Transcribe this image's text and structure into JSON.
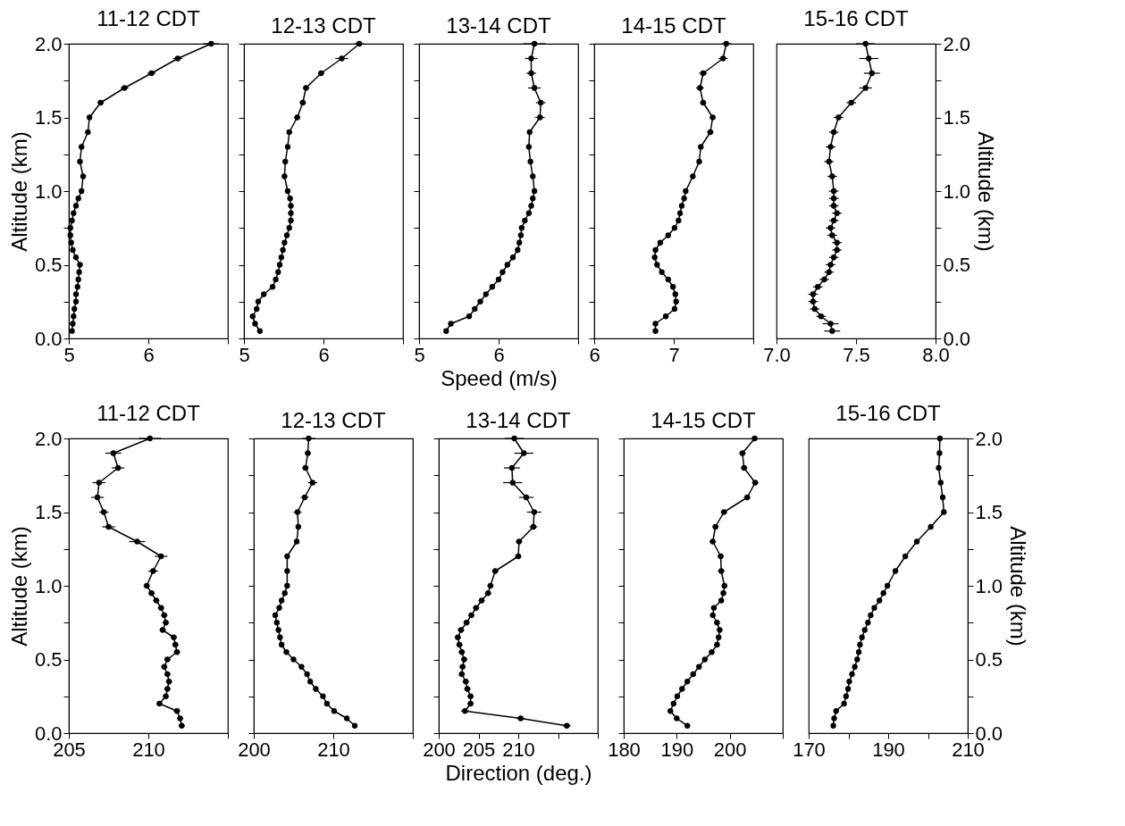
{
  "chart_data": [
    {
      "type": "line",
      "title": "11-12 CDT",
      "ylabel": "Altitude (km)",
      "color": "#000000",
      "marker": "circle",
      "x": [
        5.04,
        5.05,
        5.06,
        5.07,
        5.09,
        5.09,
        5.11,
        5.12,
        5.13,
        5.14,
        5.09,
        5.05,
        5.03,
        5.02,
        5.02,
        5.04,
        5.06,
        5.09,
        5.12,
        5.16,
        5.18,
        5.14,
        5.16,
        5.24,
        5.26,
        5.4,
        5.7,
        6.04,
        6.37,
        6.79
      ],
      "values": [
        0.05,
        0.1,
        0.15,
        0.2,
        0.25,
        0.3,
        0.35,
        0.4,
        0.45,
        0.5,
        0.55,
        0.6,
        0.65,
        0.7,
        0.75,
        0.8,
        0.85,
        0.9,
        0.95,
        1.0,
        1.1,
        1.2,
        1.3,
        1.4,
        1.5,
        1.6,
        1.7,
        1.8,
        1.9,
        2.0
      ],
      "xerrors": [
        0.02,
        0.02,
        0.02,
        0.02,
        0.02,
        0.02,
        0.02,
        0.02,
        0.02,
        0.02,
        0.02,
        0.02,
        0.02,
        0.02,
        0.02,
        0.02,
        0.02,
        0.02,
        0.02,
        0.02,
        0.03,
        0.03,
        0.03,
        0.03,
        0.03,
        0.04,
        0.05,
        0.05,
        0.06,
        0.1
      ],
      "xlim": [
        5,
        7
      ],
      "xticks": [
        5,
        6,
        {
          "value": 7,
          "label": null
        }
      ],
      "ylim": [
        0,
        2
      ],
      "yticks": [
        {
          "value": 0,
          "label": "0.0"
        },
        {
          "value": 0.25,
          "label": null
        },
        {
          "value": 0.5,
          "label": "0.5"
        },
        {
          "value": 0.75,
          "label": null
        },
        {
          "value": 1,
          "label": "1.0"
        },
        {
          "value": 1.25,
          "label": null
        },
        {
          "value": 1.5,
          "label": "1.5"
        },
        {
          "value": 1.75,
          "label": null
        },
        {
          "value": 2,
          "label": "2.0"
        }
      ]
    },
    {
      "type": "line",
      "title": "12-13 CDT",
      "color": "#000000",
      "marker": "circle",
      "tick_labels": "x",
      "x": [
        5.2,
        5.14,
        5.11,
        5.16,
        5.18,
        5.25,
        5.36,
        5.4,
        5.43,
        5.45,
        5.47,
        5.49,
        5.51,
        5.54,
        5.57,
        5.59,
        5.59,
        5.59,
        5.58,
        5.55,
        5.51,
        5.52,
        5.55,
        5.57,
        5.67,
        5.74,
        5.78,
        5.97,
        6.23,
        6.45
      ],
      "values": [
        0.05,
        0.1,
        0.15,
        0.2,
        0.25,
        0.3,
        0.35,
        0.4,
        0.45,
        0.5,
        0.55,
        0.6,
        0.65,
        0.7,
        0.75,
        0.8,
        0.85,
        0.9,
        0.95,
        1.0,
        1.1,
        1.2,
        1.3,
        1.4,
        1.5,
        1.6,
        1.7,
        1.8,
        1.9,
        2.0
      ],
      "xerrors": [
        0.02,
        0.02,
        0.02,
        0.02,
        0.02,
        0.02,
        0.02,
        0.02,
        0.02,
        0.02,
        0.02,
        0.02,
        0.02,
        0.02,
        0.02,
        0.02,
        0.02,
        0.02,
        0.02,
        0.02,
        0.02,
        0.02,
        0.02,
        0.03,
        0.04,
        0.04,
        0.04,
        0.04,
        0.08,
        0.06
      ],
      "xlim": [
        5,
        7
      ],
      "xticks": [
        5,
        6,
        {
          "value": 7,
          "label": null
        }
      ],
      "ylim": [
        0,
        2
      ],
      "yticks": [
        0,
        0.25,
        0.5,
        0.75,
        1,
        1.25,
        1.5,
        1.75,
        2
      ]
    },
    {
      "type": "line",
      "title": "13-14 CDT",
      "xlabel": "Speed (m/s)",
      "color": "#000000",
      "marker": "circle",
      "tick_labels": "x",
      "x": [
        5.34,
        5.4,
        5.63,
        5.7,
        5.77,
        5.84,
        5.92,
        6.0,
        6.05,
        6.11,
        6.18,
        6.24,
        6.26,
        6.28,
        6.29,
        6.33,
        6.38,
        6.41,
        6.43,
        6.45,
        6.43,
        6.4,
        6.38,
        6.39,
        6.52,
        6.53,
        6.45,
        6.41,
        6.41,
        6.45
      ],
      "values": [
        0.05,
        0.1,
        0.15,
        0.2,
        0.25,
        0.3,
        0.35,
        0.4,
        0.45,
        0.5,
        0.55,
        0.6,
        0.65,
        0.7,
        0.75,
        0.8,
        0.85,
        0.9,
        0.95,
        1.0,
        1.1,
        1.2,
        1.3,
        1.4,
        1.5,
        1.6,
        1.7,
        1.8,
        1.9,
        2.0
      ],
      "xerrors": [
        0.03,
        0.03,
        0.03,
        0.03,
        0.03,
        0.03,
        0.03,
        0.03,
        0.03,
        0.03,
        0.03,
        0.03,
        0.03,
        0.03,
        0.03,
        0.03,
        0.03,
        0.03,
        0.03,
        0.03,
        0.03,
        0.03,
        0.03,
        0.03,
        0.06,
        0.06,
        0.08,
        0.06,
        0.08,
        0.14
      ],
      "xlim": [
        5,
        7
      ],
      "xticks": [
        5,
        6,
        {
          "value": 7,
          "label": null
        }
      ],
      "ylim": [
        0,
        2
      ],
      "yticks": [
        0,
        0.25,
        0.5,
        0.75,
        1,
        1.25,
        1.5,
        1.75,
        2
      ]
    },
    {
      "type": "line",
      "title": "14-15 CDT",
      "color": "#000000",
      "marker": "circle",
      "tick_labels": "x",
      "x": [
        6.77,
        6.77,
        6.9,
        7.01,
        7.03,
        7.02,
        6.99,
        6.93,
        6.85,
        6.79,
        6.76,
        6.77,
        6.83,
        6.93,
        7.01,
        7.06,
        7.08,
        7.1,
        7.13,
        7.15,
        7.24,
        7.32,
        7.34,
        7.46,
        7.49,
        7.37,
        7.33,
        7.37,
        7.62,
        7.66
      ],
      "values": [
        0.05,
        0.1,
        0.15,
        0.2,
        0.25,
        0.3,
        0.35,
        0.4,
        0.45,
        0.5,
        0.55,
        0.6,
        0.65,
        0.7,
        0.75,
        0.8,
        0.85,
        0.9,
        0.95,
        1.0,
        1.1,
        1.2,
        1.3,
        1.4,
        1.5,
        1.6,
        1.7,
        1.8,
        1.9,
        2.0
      ],
      "xerrors": [
        0.03,
        0.03,
        0.03,
        0.03,
        0.03,
        0.03,
        0.03,
        0.03,
        0.03,
        0.03,
        0.03,
        0.03,
        0.03,
        0.03,
        0.03,
        0.03,
        0.03,
        0.03,
        0.03,
        0.03,
        0.03,
        0.03,
        0.03,
        0.04,
        0.04,
        0.04,
        0.05,
        0.05,
        0.06,
        0.06
      ],
      "xlim": [
        6,
        8
      ],
      "xticks": [
        6,
        7,
        {
          "value": 8,
          "label": null
        }
      ],
      "ylim": [
        0,
        2
      ],
      "yticks": [
        0,
        0.25,
        0.5,
        0.75,
        1,
        1.25,
        1.5,
        1.75,
        2
      ]
    },
    {
      "type": "line",
      "title": "15-16 CDT",
      "y2label": "Altitude (km)",
      "marker": "circle",
      "tick_labels": "x",
      "series": [
        {
          "color": "#000000",
          "axis": "y2",
          "x": [
            7.35,
            7.34,
            7.28,
            7.24,
            7.23,
            7.23,
            7.26,
            7.3,
            7.33,
            7.34,
            7.36,
            7.38,
            7.38,
            7.35,
            7.34,
            7.36,
            7.38,
            7.36,
            7.36,
            7.36,
            7.35,
            7.33,
            7.34,
            7.36,
            7.39,
            7.47,
            7.56,
            7.6,
            7.58,
            7.56
          ],
          "values": [
            0.05,
            0.1,
            0.15,
            0.2,
            0.25,
            0.3,
            0.35,
            0.4,
            0.45,
            0.5,
            0.55,
            0.6,
            0.65,
            0.7,
            0.75,
            0.8,
            0.85,
            0.9,
            0.95,
            1.0,
            1.1,
            1.2,
            1.3,
            1.4,
            1.5,
            1.6,
            1.7,
            1.8,
            1.9,
            2.0
          ],
          "xerrors": [
            0.05,
            0.05,
            0.03,
            0.03,
            0.03,
            0.03,
            0.03,
            0.03,
            0.03,
            0.03,
            0.03,
            0.03,
            0.03,
            0.03,
            0.03,
            0.03,
            0.03,
            0.03,
            0.03,
            0.03,
            0.03,
            0.03,
            0.03,
            0.03,
            0.03,
            0.03,
            0.04,
            0.05,
            0.06,
            0.06
          ]
        }
      ],
      "xlim": [
        7,
        8
      ],
      "xticks": [
        {
          "value": 7,
          "label": "7.0"
        },
        {
          "value": 7.5,
          "label": "7.5"
        },
        {
          "value": 8,
          "label": "8.0"
        }
      ],
      "y2lim": [
        0,
        2
      ],
      "y2ticks": [
        {
          "value": 0,
          "label": "0.0"
        },
        {
          "value": 0.25,
          "label": null
        },
        {
          "value": 0.5,
          "label": "0.5"
        },
        {
          "value": 0.75,
          "label": null
        },
        {
          "value": 1,
          "label": "1.0"
        },
        {
          "value": 1.25,
          "label": null
        },
        {
          "value": 1.5,
          "label": "1.5"
        },
        {
          "value": 1.75,
          "label": null
        },
        {
          "value": 2,
          "label": "2.0"
        }
      ]
    },
    {
      "type": "line",
      "title": "11-12 CDT",
      "ylabel": "Altitude (km)",
      "color": "#000000",
      "marker": "circle",
      "x": [
        212.1,
        212.0,
        211.8,
        210.7,
        211.1,
        211.2,
        211.3,
        211.2,
        211.0,
        211.2,
        211.8,
        211.7,
        211.6,
        210.9,
        211.1,
        211.0,
        210.8,
        210.5,
        210.2,
        209.9,
        210.3,
        210.8,
        209.3,
        207.5,
        207.2,
        206.8,
        206.9,
        208.1,
        207.8,
        210.1
      ],
      "values": [
        0.05,
        0.1,
        0.15,
        0.2,
        0.25,
        0.3,
        0.35,
        0.4,
        0.45,
        0.5,
        0.55,
        0.6,
        0.65,
        0.7,
        0.75,
        0.8,
        0.85,
        0.9,
        0.95,
        1.0,
        1.1,
        1.2,
        1.3,
        1.4,
        1.5,
        1.6,
        1.7,
        1.8,
        1.9,
        2.0
      ],
      "xerrors": [
        0.2,
        0.2,
        0.2,
        0.2,
        0.2,
        0.2,
        0.2,
        0.2,
        0.2,
        0.2,
        0.2,
        0.2,
        0.2,
        0.2,
        0.2,
        0.2,
        0.2,
        0.2,
        0.2,
        0.2,
        0.3,
        0.4,
        0.5,
        0.4,
        0.3,
        0.4,
        0.4,
        0.4,
        0.5,
        0.7
      ],
      "xlim": [
        205,
        215
      ],
      "xticks": [
        205,
        210,
        {
          "value": 215,
          "label": null
        }
      ],
      "ylim": [
        0,
        2
      ],
      "yticks": [
        {
          "value": 0,
          "label": "0.0"
        },
        {
          "value": 0.25,
          "label": null
        },
        {
          "value": 0.5,
          "label": "0.5"
        },
        {
          "value": 0.75,
          "label": null
        },
        {
          "value": 1,
          "label": "1.0"
        },
        {
          "value": 1.25,
          "label": null
        },
        {
          "value": 1.5,
          "label": "1.5"
        },
        {
          "value": 1.75,
          "label": null
        },
        {
          "value": 2,
          "label": "2.0"
        }
      ]
    },
    {
      "type": "line",
      "title": "12-13 CDT",
      "color": "#000000",
      "marker": "circle",
      "tick_labels": "x",
      "x": [
        212.7,
        211.7,
        210.1,
        209.2,
        208.7,
        207.8,
        207.1,
        206.7,
        206.0,
        205.0,
        204.1,
        203.5,
        203.3,
        203.1,
        202.9,
        202.7,
        203.2,
        203.5,
        203.9,
        204.2,
        204.2,
        204.2,
        205.4,
        205.6,
        205.5,
        206.4,
        207.4,
        206.5,
        206.8,
        206.9
      ],
      "values": [
        0.05,
        0.1,
        0.15,
        0.2,
        0.25,
        0.3,
        0.35,
        0.4,
        0.45,
        0.5,
        0.55,
        0.6,
        0.65,
        0.7,
        0.75,
        0.8,
        0.85,
        0.9,
        0.95,
        1.0,
        1.1,
        1.2,
        1.3,
        1.4,
        1.5,
        1.6,
        1.7,
        1.8,
        1.9,
        2.0
      ],
      "xerrors": [
        0.3,
        0.3,
        0.3,
        0.3,
        0.3,
        0.3,
        0.3,
        0.3,
        0.3,
        0.3,
        0.3,
        0.3,
        0.3,
        0.3,
        0.3,
        0.3,
        0.3,
        0.3,
        0.3,
        0.3,
        0.3,
        0.3,
        0.3,
        0.3,
        0.5,
        0.5,
        0.6,
        0.4,
        0.4,
        0.8
      ],
      "xlim": [
        200,
        220
      ],
      "xticks": [
        200,
        210,
        {
          "value": 220,
          "label": null
        }
      ],
      "ylim": [
        0,
        2
      ],
      "yticks": [
        0,
        0.25,
        0.5,
        0.75,
        1,
        1.25,
        1.5,
        1.75,
        2
      ]
    },
    {
      "type": "line",
      "title": "13-14 CDT",
      "xlabel": "Direction (deg.)",
      "color": "#000000",
      "marker": "circle",
      "tick_labels": "x",
      "x": [
        216.1,
        210.3,
        203.3,
        204.0,
        204.0,
        203.6,
        203.4,
        202.9,
        203.0,
        203.2,
        202.9,
        202.6,
        202.4,
        202.8,
        203.5,
        204.1,
        204.7,
        205.4,
        206.2,
        206.5,
        207.1,
        210.0,
        210.1,
        211.9,
        212.0,
        211.0,
        209.3,
        209.2,
        210.7,
        209.5
      ],
      "values": [
        0.05,
        0.1,
        0.15,
        0.2,
        0.25,
        0.3,
        0.35,
        0.4,
        0.45,
        0.5,
        0.55,
        0.6,
        0.65,
        0.7,
        0.75,
        0.8,
        0.85,
        0.9,
        0.95,
        1.0,
        1.1,
        1.2,
        1.3,
        1.4,
        1.5,
        1.6,
        1.7,
        1.8,
        1.9,
        2.0
      ],
      "xerrors": [
        0.5,
        0.5,
        0.5,
        0.4,
        0.4,
        0.4,
        0.4,
        0.4,
        0.4,
        0.4,
        0.4,
        0.4,
        0.4,
        0.4,
        0.4,
        0.4,
        0.4,
        0.4,
        0.4,
        0.4,
        0.4,
        0.4,
        0.4,
        0.5,
        0.9,
        0.9,
        1.2,
        1.0,
        1.2,
        1.2
      ],
      "xlim": [
        200,
        220
      ],
      "xticks": [
        200,
        205,
        210,
        {
          "value": 215,
          "label": null
        },
        {
          "value": 220,
          "label": null
        }
      ],
      "ylim": [
        0,
        2
      ],
      "yticks": [
        0,
        0.25,
        0.5,
        0.75,
        1,
        1.25,
        1.5,
        1.75,
        2
      ]
    },
    {
      "type": "line",
      "title": "14-15 CDT",
      "color": "#000000",
      "marker": "circle",
      "tick_labels": "x",
      "x": [
        192.0,
        190.0,
        188.8,
        189.4,
        190.1,
        191.0,
        192.0,
        193.1,
        194.2,
        195.3,
        196.6,
        197.6,
        197.9,
        198.1,
        197.6,
        196.8,
        197.0,
        198.4,
        198.8,
        199.0,
        198.4,
        198.3,
        196.8,
        197.3,
        198.9,
        203.3,
        204.8,
        202.7,
        202.4,
        204.7
      ],
      "values": [
        0.05,
        0.1,
        0.15,
        0.2,
        0.25,
        0.3,
        0.35,
        0.4,
        0.45,
        0.5,
        0.55,
        0.6,
        0.65,
        0.7,
        0.75,
        0.8,
        0.85,
        0.9,
        0.95,
        1.0,
        1.1,
        1.2,
        1.3,
        1.4,
        1.5,
        1.6,
        1.7,
        1.8,
        1.9,
        2.0
      ],
      "xerrors": [
        0.5,
        0.5,
        0.5,
        0.5,
        0.5,
        0.5,
        0.5,
        0.5,
        0.5,
        0.5,
        0.5,
        0.5,
        0.5,
        0.5,
        0.5,
        0.5,
        0.5,
        0.5,
        0.5,
        0.5,
        0.6,
        0.6,
        0.6,
        0.6,
        0.6,
        0.6,
        0.6,
        0.6,
        0.6,
        0.6
      ],
      "xlim": [
        180,
        210
      ],
      "xticks": [
        180,
        190,
        200,
        {
          "value": 210,
          "label": null
        }
      ],
      "ylim": [
        0,
        2
      ],
      "yticks": [
        0,
        0.25,
        0.5,
        0.75,
        1,
        1.25,
        1.5,
        1.75,
        2
      ]
    },
    {
      "type": "line",
      "title": "15-16 CDT",
      "y2label": "Altitude (km)",
      "marker": "circle",
      "tick_labels": "x",
      "series": [
        {
          "color": "#000000",
          "axis": "y2",
          "x": [
            176.2,
            176.4,
            176.9,
            178.9,
            179.4,
            179.9,
            180.2,
            180.9,
            181.6,
            182.2,
            182.6,
            182.9,
            183.4,
            184.1,
            184.9,
            185.6,
            186.5,
            187.8,
            188.8,
            189.8,
            191.8,
            194.3,
            197.2,
            200.7,
            204.0,
            203.7,
            203.2,
            202.7,
            202.9,
            203.0
          ],
          "values": [
            0.05,
            0.1,
            0.15,
            0.2,
            0.25,
            0.3,
            0.35,
            0.4,
            0.45,
            0.5,
            0.55,
            0.6,
            0.65,
            0.7,
            0.75,
            0.8,
            0.85,
            0.9,
            0.95,
            1.0,
            1.1,
            1.2,
            1.3,
            1.4,
            1.5,
            1.6,
            1.7,
            1.8,
            1.9,
            2.0
          ],
          "xerrors": [
            0.4,
            0.4,
            0.4,
            0.4,
            0.4,
            0.4,
            0.4,
            0.4,
            0.4,
            0.4,
            0.4,
            0.4,
            0.4,
            0.4,
            0.4,
            0.4,
            0.4,
            0.4,
            0.4,
            0.4,
            0.4,
            0.4,
            0.4,
            0.4,
            0.4,
            0.4,
            0.4,
            0.4,
            0.4,
            0.4
          ]
        }
      ],
      "xlim": [
        170,
        210
      ],
      "xticks": [
        170,
        {
          "value": 180,
          "label": null
        },
        190,
        {
          "value": 200,
          "label": null
        },
        210
      ],
      "y2lim": [
        0,
        2
      ],
      "y2ticks": [
        {
          "value": 0,
          "label": "0.0"
        },
        {
          "value": 0.25,
          "label": null
        },
        {
          "value": 0.5,
          "label": "0.5"
        },
        {
          "value": 0.75,
          "label": null
        },
        {
          "value": 1,
          "label": "1.0"
        },
        {
          "value": 1.25,
          "label": null
        },
        {
          "value": 1.5,
          "label": "1.5"
        },
        {
          "value": 1.75,
          "label": null
        },
        {
          "value": 2,
          "label": "2.0"
        }
      ]
    }
  ]
}
